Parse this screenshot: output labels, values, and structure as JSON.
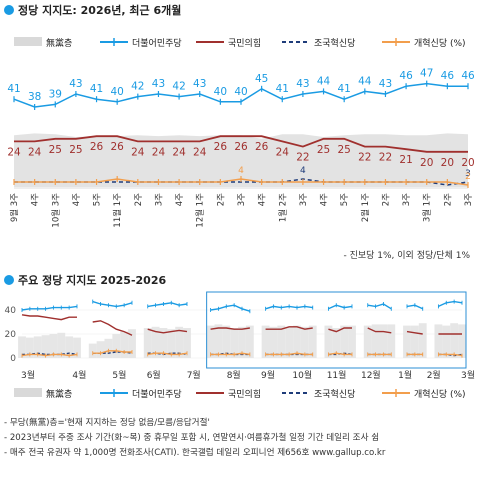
{
  "chart1": {
    "title": "정당 지지도: 2026년, 최근 6개월",
    "footnote": "- 진보당 1%, 이외 정당/단체 1%"
  },
  "chart2": {
    "title": "주요 정당 지지도 2025-2026"
  },
  "legend": {
    "items": [
      {
        "label": "無黨층",
        "color": "#d9d9d9",
        "kind": "area"
      },
      {
        "label": "더불어민주당",
        "color": "#1a9be3",
        "kind": "line-marker"
      },
      {
        "label": "국민의힘",
        "color": "#a0302e",
        "kind": "line"
      },
      {
        "label": "조국혁신당",
        "color": "#1f3c7a",
        "kind": "dashed"
      },
      {
        "label": "개혁신당 (%)",
        "color": "#f29e4c",
        "kind": "line-marker"
      }
    ],
    "items2": [
      {
        "label": "無黨층",
        "color": "#d9d9d9",
        "kind": "area"
      },
      {
        "label": "더불어민주당",
        "color": "#1a9be3",
        "kind": "line-marker"
      },
      {
        "label": "국민의힘",
        "color": "#a0302e",
        "kind": "line"
      },
      {
        "label": "조국혁신당",
        "color": "#1f3c7a",
        "kind": "dashed"
      },
      {
        "label": "개혁신당 (%)",
        "color": "#f29e4c",
        "kind": "line-marker"
      }
    ]
  },
  "notes": [
    "- 무당(無黨)층='현재 지지하는 정당 없음/모름/응답거절'",
    "- 2023년부터 주중 조사 기간(화~목) 중 휴무일 포함 시, 연말연시·여름휴가철 일정 기간 데일리 조사 쉼",
    "- 매주 전국 유권자 약 1,000명 전화조사(CATI). 한국갤럽 데일리 오피니언 제656호 www.gallup.co.kr"
  ],
  "chart_data": [
    {
      "type": "line",
      "title": "정당 지지도: 2026년, 최근 6개월",
      "x": [
        "9월 3주",
        "4주",
        "10월 3주",
        "4주",
        "5주",
        "11월 1주",
        "2주",
        "3주",
        "4주",
        "12월 1주",
        "2주",
        "3주",
        "4주",
        "1월 2주",
        "3주",
        "4주",
        "5주",
        "2월 1주",
        "2주",
        "3주",
        "3월 1주",
        "2주",
        "3주"
      ],
      "x_top_labels": [
        "3주",
        "4주",
        "3주",
        "4주",
        "5주",
        "1주",
        "2주",
        "3주",
        "4주",
        "1주",
        "2주",
        "3주",
        "4주",
        "2주",
        "3주",
        "4주",
        "5주",
        "1주",
        "2주",
        "3주",
        "1주",
        "2주",
        "3주"
      ],
      "x_bottom_labels": [
        "9월",
        "",
        "10월",
        "",
        "",
        "11월",
        "",
        "",
        "",
        "12월",
        "",
        "",
        "",
        "1월",
        "",
        "",
        "",
        "2월",
        "",
        "",
        "3월",
        "",
        ""
      ],
      "series": [
        {
          "name": "더불어민주당",
          "color": "#1a9be3",
          "values": [
            41,
            38,
            39,
            43,
            41,
            40,
            42,
            43,
            42,
            43,
            40,
            40,
            45,
            41,
            43,
            44,
            41,
            44,
            43,
            46,
            47,
            46,
            46
          ],
          "labels": [
            "41",
            "38",
            "39",
            "43",
            "41",
            "40",
            "42",
            "43",
            "42",
            "43",
            "40",
            "40",
            "45",
            "41",
            "43",
            "44",
            "41",
            "44",
            "43",
            "46",
            "47",
            "46",
            "46"
          ]
        },
        {
          "name": "국민의힘",
          "color": "#a0302e",
          "values": [
            24,
            24,
            25,
            25,
            26,
            26,
            24,
            24,
            24,
            24,
            26,
            26,
            26,
            24,
            22,
            25,
            25,
            22,
            22,
            21,
            20,
            20,
            20
          ],
          "labels": [
            "24",
            "24",
            "25",
            "25",
            "26",
            "26",
            "24",
            "24",
            "24",
            "24",
            "26",
            "26",
            "26",
            "24",
            "22",
            "25",
            "25",
            "22",
            "22",
            "21",
            "20",
            "20",
            "20"
          ]
        },
        {
          "name": "조국혁신당",
          "color": "#1f3c7a",
          "values": [
            3,
            3,
            3,
            3,
            3,
            3,
            3,
            3,
            3,
            3,
            3,
            3,
            3,
            3,
            4,
            3,
            3,
            3,
            3,
            3,
            3,
            2,
            3
          ],
          "labels": [
            "",
            "",
            "",
            "",
            "",
            "",
            "",
            "",
            "",
            "",
            "",
            "",
            "",
            "",
            "4",
            "",
            "",
            "",
            "",
            "",
            "",
            "",
            "3"
          ]
        },
        {
          "name": "개혁신당",
          "color": "#f29e4c",
          "values": [
            3,
            3,
            3,
            3,
            3,
            4,
            3,
            3,
            3,
            3,
            3,
            4,
            3,
            3,
            3,
            3,
            3,
            3,
            3,
            3,
            3,
            3,
            2
          ],
          "labels": [
            "",
            "",
            "",
            "",
            "",
            "",
            "",
            "",
            "",
            "",
            "",
            "4",
            "",
            "",
            "",
            "",
            "",
            "",
            "",
            "",
            "",
            "",
            "2"
          ]
        },
        {
          "name": "無黨층",
          "color": "#d9d9d9",
          "values": [
            27,
            29,
            28,
            25,
            26,
            26,
            27,
            26,
            27,
            26,
            27,
            27,
            23,
            28,
            28,
            25,
            27,
            28,
            28,
            27,
            27,
            29,
            28
          ]
        }
      ],
      "ylim": [
        0,
        55
      ]
    },
    {
      "type": "line",
      "title": "주요 정당 지지도 2025-2026",
      "x_tick_labels": [
        "3월",
        "4월",
        "5월",
        "6월",
        "7월",
        "8월",
        "9월",
        "10월",
        "11월",
        "12월",
        "1월",
        "2월",
        "3월"
      ],
      "y_tick_labels": [
        "40",
        "20",
        "0"
      ],
      "ylim": [
        0,
        50
      ],
      "highlight": "9월 3주 – 3월 3주",
      "series": [
        {
          "name": "더불어민주당",
          "color": "#1a9be3",
          "values": [
            40,
            41,
            41,
            41,
            42,
            42,
            42,
            43,
            null,
            47,
            45,
            44,
            43,
            44,
            46,
            null,
            43,
            44,
            45,
            46,
            44,
            45,
            null,
            null,
            40,
            41,
            43,
            44,
            41,
            39,
            null,
            41,
            43,
            42,
            43,
            42,
            43,
            42,
            null,
            41,
            44,
            42,
            43,
            null,
            44,
            43,
            45,
            41,
            null,
            43,
            44,
            41,
            null,
            43,
            46,
            47,
            46
          ]
        },
        {
          "name": "국민의힘",
          "color": "#a0302e",
          "values": [
            36,
            35,
            35,
            34,
            33,
            32,
            34,
            34,
            null,
            30,
            31,
            28,
            24,
            22,
            19,
            null,
            24,
            22,
            21,
            22,
            23,
            22,
            null,
            null,
            24,
            25,
            25,
            24,
            24,
            25,
            null,
            24,
            24,
            24,
            26,
            26,
            24,
            25,
            null,
            24,
            22,
            25,
            25,
            null,
            25,
            22,
            22,
            21,
            null,
            22,
            21,
            20,
            null,
            20,
            20,
            20,
            20
          ]
        },
        {
          "name": "조국혁신당",
          "color": "#1f3c7a",
          "values": [
            3,
            3,
            4,
            3,
            3,
            3,
            4,
            3,
            null,
            4,
            4,
            4,
            5,
            5,
            4,
            null,
            4,
            4,
            3,
            4,
            4,
            3,
            null,
            null,
            3,
            3,
            4,
            3,
            3,
            3,
            null,
            3,
            3,
            3,
            3,
            3,
            3,
            3,
            null,
            3,
            3,
            4,
            3,
            null,
            3,
            3,
            3,
            3,
            null,
            3,
            3,
            3,
            null,
            3,
            3,
            2,
            3
          ]
        },
        {
          "name": "개혁신당",
          "color": "#f29e4c",
          "values": [
            2,
            3,
            3,
            2,
            3,
            3,
            2,
            3,
            null,
            4,
            4,
            6,
            6,
            5,
            5,
            null,
            3,
            4,
            4,
            3,
            3,
            4,
            null,
            null,
            3,
            3,
            3,
            3,
            4,
            3,
            null,
            3,
            3,
            3,
            3,
            4,
            3,
            3,
            null,
            3,
            4,
            3,
            3,
            null,
            3,
            3,
            3,
            3,
            null,
            3,
            3,
            3,
            null,
            3,
            3,
            3,
            2
          ]
        },
        {
          "name": "無黨층",
          "color": "#d9d9d9",
          "values": [
            18,
            17,
            18,
            19,
            20,
            21,
            18,
            17,
            null,
            12,
            14,
            16,
            20,
            22,
            24,
            null,
            25,
            26,
            25,
            24,
            26,
            25,
            null,
            null,
            27,
            28,
            27,
            25,
            26,
            27,
            null,
            27,
            26,
            27,
            26,
            27,
            26,
            27,
            null,
            27,
            25,
            27,
            27,
            null,
            27,
            28,
            28,
            28,
            null,
            27,
            27,
            29,
            null,
            28,
            27,
            29,
            28
          ]
        }
      ]
    }
  ]
}
